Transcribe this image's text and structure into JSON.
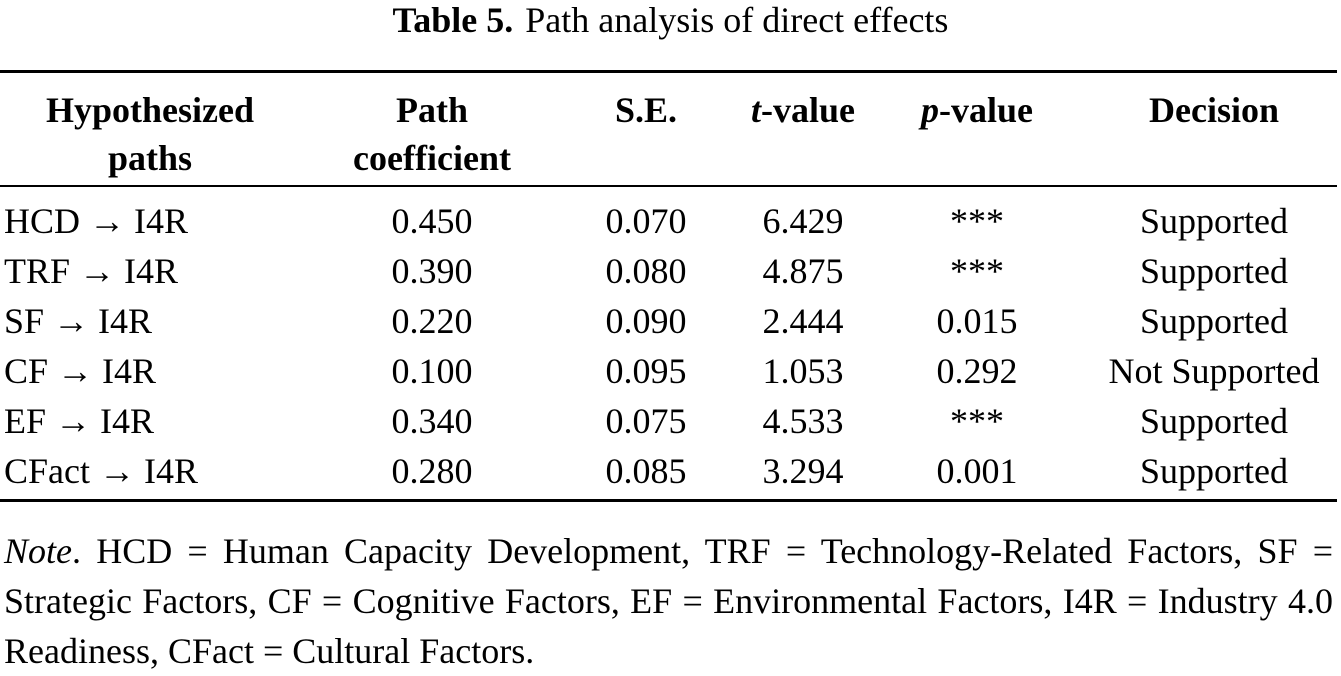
{
  "caption": {
    "label": "Table 5.",
    "title": "Path analysis of direct effects"
  },
  "headers": {
    "path": [
      "Hypothesized",
      "paths"
    ],
    "coef": [
      "Path",
      "coefficient"
    ],
    "se": "S.E.",
    "t_italic": "t",
    "t_rest": "-value",
    "p_italic": "p",
    "p_rest": "-value",
    "decision": "Decision"
  },
  "rows": [
    {
      "path": "HCD → I4R",
      "coef": "0.450",
      "se": "0.070",
      "t": "6.429",
      "p": "***",
      "decision": "Supported"
    },
    {
      "path": "TRF → I4R",
      "coef": "0.390",
      "se": "0.080",
      "t": "4.875",
      "p": "***",
      "decision": "Supported"
    },
    {
      "path": "SF → I4R",
      "coef": "0.220",
      "se": "0.090",
      "t": "2.444",
      "p": "0.015",
      "decision": "Supported"
    },
    {
      "path": "CF → I4R",
      "coef": "0.100",
      "se": "0.095",
      "t": "1.053",
      "p": "0.292",
      "decision": "Not Supported"
    },
    {
      "path": "EF → I4R",
      "coef": "0.340",
      "se": "0.075",
      "t": "4.533",
      "p": "***",
      "decision": "Supported"
    },
    {
      "path": "CFact → I4R",
      "coef": "0.280",
      "se": "0.085",
      "t": "3.294",
      "p": "0.001",
      "decision": "Supported"
    }
  ],
  "note": {
    "label": "Note",
    "text": ". HCD = Human Capacity Development, TRF = Technology-Related Factors, SF = Strategic Factors, CF = Cognitive Factors, EF = Environmental Factors, I4R = Industry 4.0 Readiness, CFact = Cultural Factors."
  }
}
